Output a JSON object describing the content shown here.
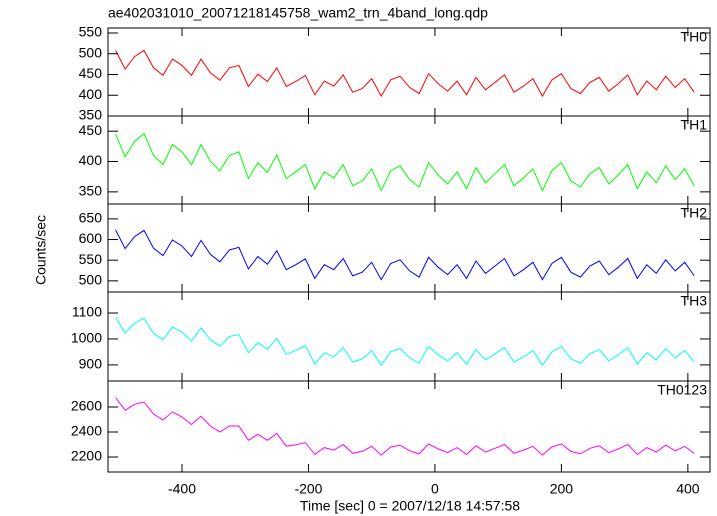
{
  "chart_data": {
    "type": "line",
    "title": "ae402031010_20071218145758_wam2_trn_4band_long.qdp",
    "xlabel": "Time [sec] 0 = 2007/12/18 14:57:58",
    "ylabel": "Counts/sec",
    "xlim": [
      -517,
      435
    ],
    "xticks": [
      -400,
      -200,
      0,
      200,
      400
    ],
    "x": [
      -505,
      -490,
      -475,
      -460,
      -445,
      -430,
      -415,
      -400,
      -385,
      -370,
      -355,
      -340,
      -325,
      -310,
      -295,
      -280,
      -265,
      -250,
      -235,
      -220,
      -205,
      -190,
      -175,
      -160,
      -145,
      -130,
      -115,
      -100,
      -85,
      -70,
      -55,
      -40,
      -25,
      -10,
      5,
      20,
      35,
      50,
      65,
      80,
      95,
      110,
      125,
      140,
      155,
      170,
      185,
      200,
      215,
      230,
      245,
      260,
      275,
      290,
      305,
      320,
      335,
      350,
      365,
      380,
      395,
      410
    ],
    "panels": [
      {
        "name": "TH0",
        "color": "#ff0000",
        "ylim": [
          350,
          562
        ],
        "yticks": [
          350,
          400,
          450,
          500,
          550
        ],
        "values": [
          508,
          463,
          493,
          508,
          466,
          448,
          487,
          472,
          448,
          487,
          454,
          436,
          466,
          472,
          421,
          451,
          433,
          466,
          421,
          433,
          448,
          401,
          434,
          422,
          449,
          407,
          416,
          440,
          398,
          437,
          446,
          419,
          404,
          452,
          428,
          410,
          434,
          401,
          443,
          413,
          431,
          449,
          407,
          422,
          440,
          398,
          437,
          452,
          416,
          404,
          431,
          443,
          410,
          428,
          449,
          401,
          434,
          413,
          446,
          419,
          440,
          407
        ]
      },
      {
        "name": "TH1",
        "color": "#00ff00",
        "ylim": [
          330,
          475
        ],
        "yticks": [
          350,
          400,
          450
        ],
        "values": [
          445,
          408,
          433,
          446,
          410,
          395,
          428,
          416,
          395,
          428,
          400,
          385,
          410,
          416,
          372,
          398,
          382,
          411,
          372,
          383,
          395,
          355,
          383,
          373,
          395,
          360,
          368,
          388,
          352,
          385,
          393,
          370,
          358,
          398,
          378,
          363,
          383,
          355,
          390,
          365,
          380,
          395,
          360,
          373,
          388,
          352,
          385,
          398,
          368,
          358,
          380,
          390,
          363,
          378,
          395,
          355,
          383,
          365,
          393,
          370,
          388,
          360
        ]
      },
      {
        "name": "TH2",
        "color": "#0000ff",
        "ylim": [
          473,
          686
        ],
        "yticks": [
          500,
          550,
          600,
          650
        ],
        "values": [
          623,
          578,
          607,
          622,
          579,
          561,
          599,
          584,
          559,
          598,
          564,
          546,
          575,
          581,
          529,
          559,
          540,
          573,
          527,
          539,
          553,
          506,
          539,
          527,
          554,
          512,
          521,
          545,
          503,
          542,
          551,
          524,
          509,
          557,
          533,
          515,
          539,
          506,
          548,
          518,
          536,
          554,
          512,
          527,
          545,
          503,
          542,
          557,
          521,
          509,
          536,
          548,
          515,
          533,
          554,
          506,
          539,
          518,
          551,
          524,
          545,
          512
        ]
      },
      {
        "name": "TH3",
        "color": "#00ffff",
        "ylim": [
          838,
          1181
        ],
        "yticks": [
          900,
          1000,
          1100
        ],
        "values": [
          1084,
          1023,
          1061,
          1080,
          1022,
          997,
          1047,
          1026,
          992,
          1043,
          997,
          972,
          1010,
          1017,
          947,
          986,
          960,
          1003,
          941,
          956,
          974,
          903,
          947,
          931,
          967,
          911,
          923,
          955,
          899,
          951,
          963,
          927,
          907,
          971,
          939,
          915,
          947,
          903,
          959,
          919,
          943,
          967,
          911,
          931,
          955,
          899,
          951,
          971,
          923,
          907,
          943,
          959,
          915,
          939,
          967,
          903,
          947,
          919,
          963,
          927,
          955,
          911
        ]
      },
      {
        "name": "TH0123",
        "color": "#ff00ff",
        "ylim": [
          2080,
          2808
        ],
        "yticks": [
          2200,
          2400,
          2600
        ],
        "values": [
          2676,
          2574,
          2622,
          2640,
          2544,
          2496,
          2562,
          2520,
          2460,
          2526,
          2448,
          2400,
          2448,
          2448,
          2334,
          2382,
          2334,
          2388,
          2286,
          2298,
          2316,
          2220,
          2275,
          2255,
          2300,
          2230,
          2245,
          2285,
          2215,
          2280,
          2295,
          2250,
          2225,
          2305,
          2265,
          2235,
          2275,
          2220,
          2290,
          2240,
          2270,
          2300,
          2230,
          2255,
          2285,
          2215,
          2280,
          2305,
          2245,
          2225,
          2270,
          2290,
          2235,
          2265,
          2300,
          2220,
          2275,
          2240,
          2295,
          2250,
          2285,
          2230
        ]
      }
    ]
  }
}
